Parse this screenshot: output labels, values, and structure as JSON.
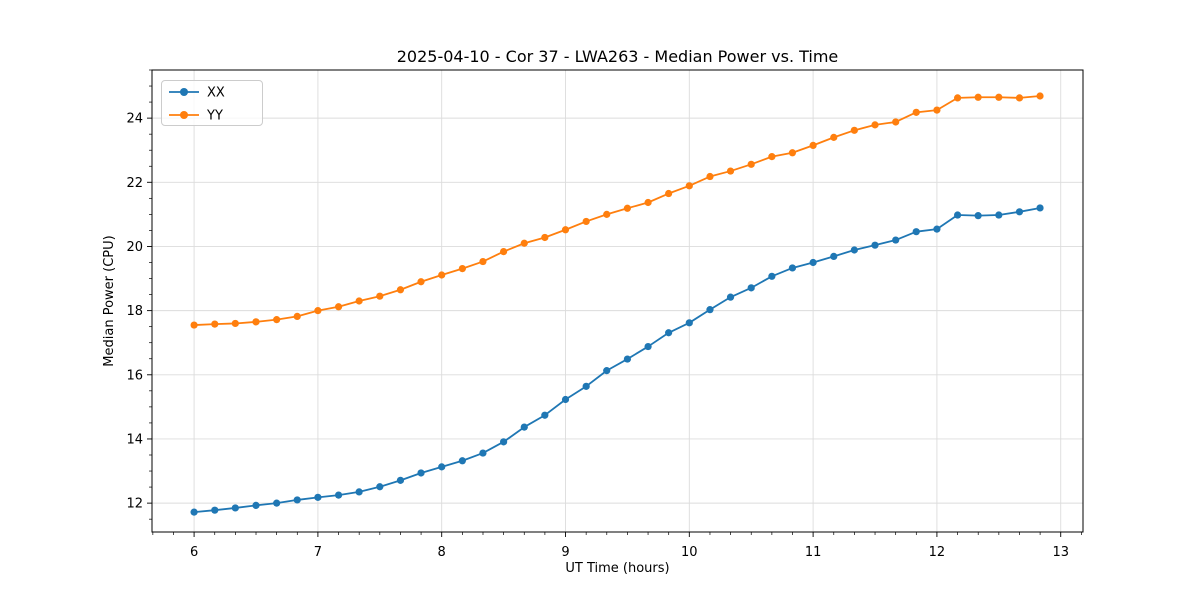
{
  "chart_data": {
    "type": "line",
    "title": "2025-04-10 - Cor 37 - LWA263 - Median Power vs. Time",
    "xlabel": "UT Time (hours)",
    "ylabel": "Median Power (CPU)",
    "xlim": [
      5.66,
      13.18
    ],
    "ylim": [
      11.1,
      25.5
    ],
    "xticks": [
      6,
      7,
      8,
      9,
      10,
      11,
      12,
      13
    ],
    "yticks": [
      12,
      14,
      16,
      18,
      20,
      22,
      24
    ],
    "x_minor_step": 0.16667,
    "y_minor_step": 0.5,
    "grid": true,
    "legend_position": "upper left",
    "x": [
      6.0,
      6.167,
      6.333,
      6.5,
      6.667,
      6.833,
      7.0,
      7.167,
      7.333,
      7.5,
      7.667,
      7.833,
      8.0,
      8.167,
      8.333,
      8.5,
      8.667,
      8.833,
      9.0,
      9.167,
      9.333,
      9.5,
      9.667,
      9.833,
      10.0,
      10.167,
      10.333,
      10.5,
      10.667,
      10.833,
      11.0,
      11.167,
      11.333,
      11.5,
      11.667,
      11.833,
      12.0,
      12.167,
      12.333,
      12.5,
      12.667,
      12.833
    ],
    "series": [
      {
        "name": "XX",
        "color": "#1f77b4",
        "values": [
          11.72,
          11.78,
          11.85,
          11.93,
          12.0,
          12.1,
          12.18,
          12.25,
          12.35,
          12.51,
          12.71,
          12.94,
          13.13,
          13.32,
          13.56,
          13.91,
          14.37,
          14.74,
          15.23,
          15.64,
          16.13,
          16.49,
          16.88,
          17.31,
          17.62,
          18.03,
          18.42,
          18.71,
          19.07,
          19.33,
          19.5,
          19.69,
          19.89,
          20.04,
          20.2,
          20.46,
          20.54,
          20.98,
          20.96,
          20.98,
          21.08,
          21.2
        ]
      },
      {
        "name": "YY",
        "color": "#ff7f0e",
        "values": [
          17.55,
          17.58,
          17.6,
          17.65,
          17.72,
          17.82,
          18.0,
          18.12,
          18.3,
          18.45,
          18.65,
          18.9,
          19.11,
          19.31,
          19.53,
          19.84,
          20.1,
          20.28,
          20.52,
          20.78,
          21.0,
          21.19,
          21.37,
          21.65,
          21.89,
          22.18,
          22.35,
          22.56,
          22.8,
          22.92,
          23.15,
          23.4,
          23.62,
          23.79,
          23.88,
          24.18,
          24.25,
          24.63,
          24.65,
          24.65,
          24.63,
          24.69
        ]
      }
    ],
    "colors": {
      "background": "#ffffff",
      "grid": "#dcdcdc",
      "axis": "#000000",
      "legend_border": "#cccccc"
    }
  }
}
